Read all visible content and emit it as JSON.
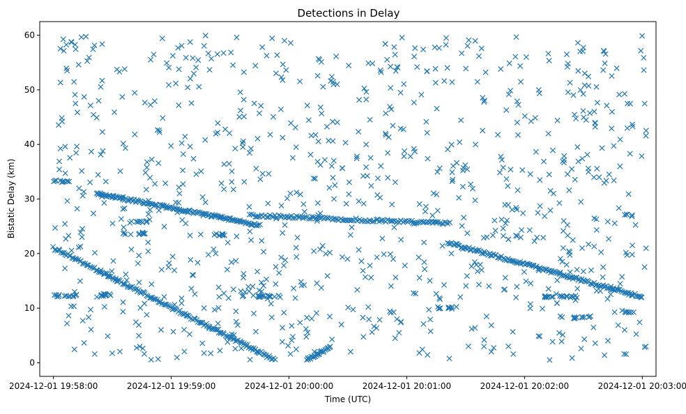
{
  "chart_data": {
    "type": "scatter",
    "title": "Detections in Delay",
    "xlabel": "Time (UTC)",
    "ylabel": "Bistatic Delay (km)",
    "marker": "x",
    "color": "#1f77b4",
    "xlim_seconds_from_195800": [
      -7,
      307
    ],
    "ylim": [
      -2.5,
      62.5
    ],
    "x_ticks": [
      {
        "t": 0,
        "label": "2024-12-01 19:58:00"
      },
      {
        "t": 60,
        "label": "2024-12-01 19:59:00"
      },
      {
        "t": 120,
        "label": "2024-12-01 20:00:00"
      },
      {
        "t": 180,
        "label": "2024-12-01 20:01:00"
      },
      {
        "t": 240,
        "label": "2024-12-01 20:02:00"
      },
      {
        "t": 300,
        "label": "2024-12-01 20:03:00"
      }
    ],
    "y_ticks": [
      0,
      10,
      20,
      30,
      40,
      50,
      60
    ],
    "tracks": [
      {
        "name": "track-descending-1",
        "t_start": 0,
        "t_end": 113,
        "y_start": 21,
        "y_end": 0.5,
        "points": 170
      },
      {
        "name": "track-rising-1",
        "t_start": 129,
        "t_end": 141,
        "y_start": 0.5,
        "y_end": 2.8,
        "points": 25
      },
      {
        "name": "track-upper",
        "t_start": 22,
        "t_end": 105,
        "y_start": 31,
        "y_end": 25.2,
        "points": 140
      },
      {
        "name": "track-middle",
        "t_start": 100,
        "t_end": 202,
        "y_start": 27,
        "y_end": 25.5,
        "points": 120
      },
      {
        "name": "track-descending-2",
        "t_start": 201,
        "t_end": 300,
        "y_start": 22,
        "y_end": 12,
        "points": 150
      }
    ],
    "bands": [
      {
        "name": "band-33",
        "t_start": 0,
        "t_end": 8,
        "y": 33.3,
        "points": 12
      },
      {
        "name": "band-12-a",
        "t_start": 0,
        "t_end": 12,
        "y": 12.3,
        "points": 12
      },
      {
        "name": "band-12-b",
        "t_start": 23,
        "t_end": 33,
        "y": 12.4,
        "points": 12
      },
      {
        "name": "band-12-c",
        "t_start": 96,
        "t_end": 116,
        "y": 12.2,
        "points": 20
      },
      {
        "name": "band-12-d",
        "t_start": 250,
        "t_end": 267,
        "y": 12.1,
        "points": 20
      },
      {
        "name": "band-24",
        "t_start": 35,
        "t_end": 48,
        "y": 23.7,
        "points": 12
      },
      {
        "name": "band-25-a",
        "t_start": 38,
        "t_end": 48,
        "y": 25.8,
        "points": 10
      },
      {
        "name": "band-10",
        "t_start": 196,
        "t_end": 204,
        "y": 10.0,
        "points": 8
      },
      {
        "name": "band-8",
        "t_start": 265,
        "t_end": 273,
        "y": 8.3,
        "points": 8
      },
      {
        "name": "band-27",
        "t_start": 291,
        "t_end": 296,
        "y": 27.0,
        "points": 6
      },
      {
        "name": "band-9",
        "t_start": 289,
        "t_end": 297,
        "y": 9.4,
        "points": 8
      },
      {
        "name": "band-23",
        "t_start": 81,
        "t_end": 88,
        "y": 23.5,
        "points": 8
      }
    ],
    "noise": {
      "t_range": [
        0,
        302
      ],
      "y_range": [
        0.5,
        60
      ],
      "points": 900
    }
  }
}
